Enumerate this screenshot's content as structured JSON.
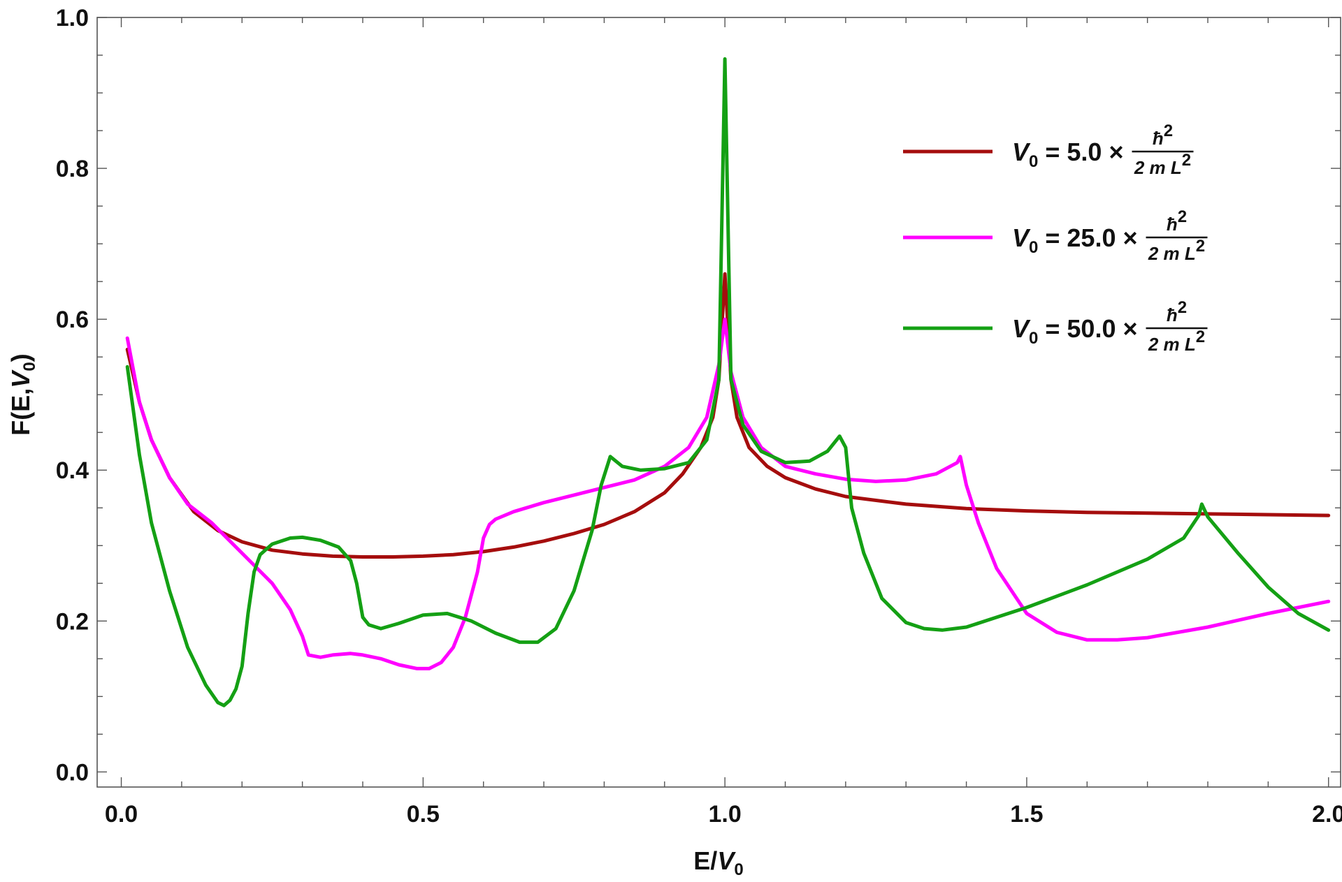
{
  "chart_data": {
    "type": "line",
    "xlabel": "E/V0",
    "xlabel_main": "E/",
    "xlabel_var": "V",
    "xlabel_sub": "0",
    "ylabel": "F(E,V0)",
    "ylabel_main": "F(E,",
    "ylabel_var": "V",
    "ylabel_sub": "0",
    "ylabel_close": ")",
    "xlim": [
      -0.04,
      2.02
    ],
    "ylim": [
      -0.02,
      1.0
    ],
    "xticks": [
      0.0,
      0.5,
      1.0,
      1.5,
      2.0
    ],
    "xtick_labels": [
      "0.0",
      "0.5",
      "1.0",
      "1.5",
      "2.0"
    ],
    "yticks": [
      0.0,
      0.2,
      0.4,
      0.6,
      0.8,
      1.0
    ],
    "ytick_labels": [
      "0.0",
      "0.2",
      "0.4",
      "0.6",
      "0.8",
      "1.0"
    ],
    "grid": false,
    "legend_position": "top-right",
    "series": [
      {
        "name": "V0 = 5.0 × ħ²/(2 m L²)",
        "legend_var": "V",
        "legend_sub": "0",
        "legend_eq": " = 5.0 ×",
        "legend_num": "ħ",
        "legend_num_sup": "2",
        "legend_den": "2 m L",
        "legend_den_sup": "2",
        "color": "#a50d0d",
        "x": [
          0.01,
          0.03,
          0.05,
          0.08,
          0.12,
          0.16,
          0.2,
          0.25,
          0.3,
          0.35,
          0.4,
          0.45,
          0.5,
          0.55,
          0.6,
          0.65,
          0.7,
          0.75,
          0.8,
          0.85,
          0.9,
          0.93,
          0.96,
          0.98,
          0.99,
          1.0,
          1.01,
          1.02,
          1.04,
          1.07,
          1.1,
          1.15,
          1.2,
          1.3,
          1.4,
          1.5,
          1.6,
          1.7,
          1.8,
          1.9,
          2.0
        ],
        "y": [
          0.56,
          0.49,
          0.44,
          0.39,
          0.345,
          0.32,
          0.305,
          0.294,
          0.289,
          0.286,
          0.285,
          0.285,
          0.286,
          0.288,
          0.292,
          0.298,
          0.306,
          0.316,
          0.328,
          0.345,
          0.37,
          0.395,
          0.43,
          0.47,
          0.52,
          0.66,
          0.52,
          0.47,
          0.43,
          0.405,
          0.39,
          0.375,
          0.365,
          0.355,
          0.349,
          0.346,
          0.344,
          0.343,
          0.342,
          0.341,
          0.34
        ]
      },
      {
        "name": "V0 = 25.0 × ħ²/(2 m L²)",
        "legend_var": "V",
        "legend_sub": "0",
        "legend_eq": " = 25.0 ×",
        "legend_num": "ħ",
        "legend_num_sup": "2",
        "legend_den": "2 m L",
        "legend_den_sup": "2",
        "color": "#ff00ff",
        "x": [
          0.01,
          0.03,
          0.05,
          0.08,
          0.11,
          0.15,
          0.2,
          0.25,
          0.28,
          0.3,
          0.31,
          0.33,
          0.35,
          0.38,
          0.4,
          0.43,
          0.46,
          0.49,
          0.51,
          0.53,
          0.55,
          0.57,
          0.59,
          0.6,
          0.61,
          0.62,
          0.65,
          0.7,
          0.75,
          0.8,
          0.85,
          0.9,
          0.94,
          0.97,
          0.99,
          1.0,
          1.01,
          1.03,
          1.06,
          1.1,
          1.15,
          1.2,
          1.25,
          1.3,
          1.35,
          1.385,
          1.39,
          1.4,
          1.42,
          1.45,
          1.5,
          1.55,
          1.6,
          1.65,
          1.7,
          1.8,
          1.9,
          2.0
        ],
        "y": [
          0.575,
          0.49,
          0.44,
          0.39,
          0.355,
          0.33,
          0.29,
          0.25,
          0.215,
          0.18,
          0.155,
          0.152,
          0.155,
          0.157,
          0.155,
          0.15,
          0.142,
          0.137,
          0.137,
          0.145,
          0.165,
          0.205,
          0.265,
          0.31,
          0.328,
          0.335,
          0.345,
          0.357,
          0.367,
          0.377,
          0.387,
          0.405,
          0.43,
          0.47,
          0.54,
          0.6,
          0.53,
          0.47,
          0.43,
          0.405,
          0.395,
          0.388,
          0.385,
          0.387,
          0.395,
          0.41,
          0.418,
          0.38,
          0.33,
          0.27,
          0.21,
          0.185,
          0.175,
          0.175,
          0.178,
          0.192,
          0.21,
          0.226
        ]
      },
      {
        "name": "V0 = 50.0 × ħ²/(2 m L²)",
        "legend_var": "V",
        "legend_sub": "0",
        "legend_eq": " = 50.0 ×",
        "legend_num": "ħ",
        "legend_num_sup": "2",
        "legend_den": "2 m L",
        "legend_den_sup": "2",
        "color": "#14a014",
        "x": [
          0.01,
          0.03,
          0.05,
          0.08,
          0.11,
          0.14,
          0.16,
          0.17,
          0.18,
          0.19,
          0.2,
          0.21,
          0.22,
          0.23,
          0.25,
          0.28,
          0.3,
          0.33,
          0.36,
          0.38,
          0.39,
          0.4,
          0.41,
          0.43,
          0.46,
          0.5,
          0.54,
          0.58,
          0.62,
          0.66,
          0.69,
          0.72,
          0.75,
          0.78,
          0.795,
          0.81,
          0.83,
          0.86,
          0.9,
          0.94,
          0.97,
          0.99,
          1.0,
          1.01,
          1.03,
          1.06,
          1.1,
          1.14,
          1.17,
          1.19,
          1.2,
          1.21,
          1.23,
          1.26,
          1.3,
          1.33,
          1.36,
          1.4,
          1.5,
          1.6,
          1.7,
          1.76,
          1.785,
          1.79,
          1.8,
          1.85,
          1.9,
          1.95,
          2.0
        ],
        "y": [
          0.537,
          0.42,
          0.33,
          0.24,
          0.165,
          0.115,
          0.092,
          0.088,
          0.095,
          0.11,
          0.14,
          0.21,
          0.265,
          0.288,
          0.302,
          0.31,
          0.311,
          0.307,
          0.298,
          0.28,
          0.25,
          0.205,
          0.195,
          0.19,
          0.197,
          0.208,
          0.21,
          0.2,
          0.184,
          0.172,
          0.172,
          0.19,
          0.24,
          0.32,
          0.38,
          0.418,
          0.405,
          0.4,
          0.402,
          0.41,
          0.44,
          0.52,
          0.945,
          0.52,
          0.46,
          0.425,
          0.41,
          0.412,
          0.425,
          0.445,
          0.43,
          0.35,
          0.29,
          0.23,
          0.198,
          0.19,
          0.188,
          0.192,
          0.218,
          0.248,
          0.282,
          0.31,
          0.34,
          0.355,
          0.338,
          0.29,
          0.245,
          0.21,
          0.188
        ]
      }
    ]
  }
}
